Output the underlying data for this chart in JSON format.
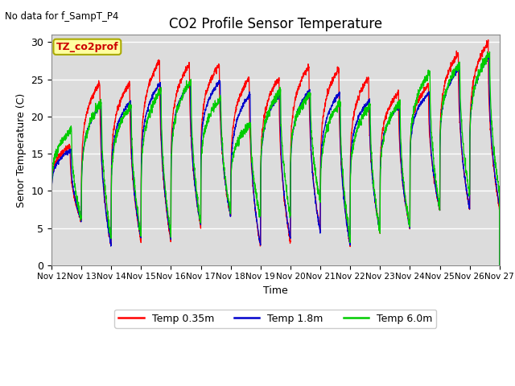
{
  "title": "CO2 Profile Sensor Temperature",
  "no_data_label": "No data for f_SampT_P4",
  "tz_label": "TZ_co2prof",
  "xlabel": "Time",
  "ylabel": "Senor Temperature (C)",
  "ylim": [
    0,
    31
  ],
  "yticks": [
    0,
    5,
    10,
    15,
    20,
    25,
    30
  ],
  "x_tick_labels": [
    "Nov 12",
    "Nov 13",
    "Nov 14",
    "Nov 15",
    "Nov 16",
    "Nov 17",
    "Nov 18",
    "Nov 19",
    "Nov 20",
    "Nov 21",
    "Nov 22",
    "Nov 23",
    "Nov 24",
    "Nov 25",
    "Nov 26",
    "Nov 27"
  ],
  "color_035m": "#FF0000",
  "color_18m": "#0000CC",
  "color_60m": "#00CC00",
  "legend_labels": [
    "Temp 0.35m",
    "Temp 1.8m",
    "Temp 6.0m"
  ],
  "bg_color": "#DCDCDC",
  "peaks_035m": [
    16.0,
    24.5,
    24.5,
    27.5,
    27.0,
    27.0,
    25.2,
    25.2,
    26.8,
    26.5,
    25.2,
    23.2,
    24.2,
    28.5,
    30.0
  ],
  "peaks_18m": [
    15.5,
    21.5,
    22.0,
    24.5,
    24.5,
    24.8,
    23.0,
    23.0,
    23.5,
    23.2,
    22.2,
    21.5,
    23.2,
    26.5,
    28.0
  ],
  "peaks_60m": [
    18.2,
    22.0,
    21.5,
    23.5,
    24.8,
    22.5,
    19.0,
    23.5,
    23.0,
    22.0,
    21.5,
    22.0,
    26.0,
    27.0,
    28.5
  ],
  "troughs_035m": [
    6.0,
    2.5,
    3.0,
    3.0,
    5.0,
    6.5,
    2.5,
    3.0,
    4.5,
    2.5,
    4.5,
    5.0,
    7.5,
    7.5,
    7.5
  ],
  "troughs_18m": [
    6.0,
    2.5,
    3.5,
    3.5,
    5.2,
    6.5,
    2.5,
    3.5,
    4.5,
    2.5,
    4.5,
    5.0,
    7.5,
    7.5,
    8.0
  ],
  "troughs_60m": [
    6.0,
    3.5,
    4.0,
    4.0,
    5.5,
    7.0,
    6.5,
    6.5,
    8.5,
    3.5,
    4.5,
    5.0,
    7.5,
    9.5,
    9.5
  ]
}
